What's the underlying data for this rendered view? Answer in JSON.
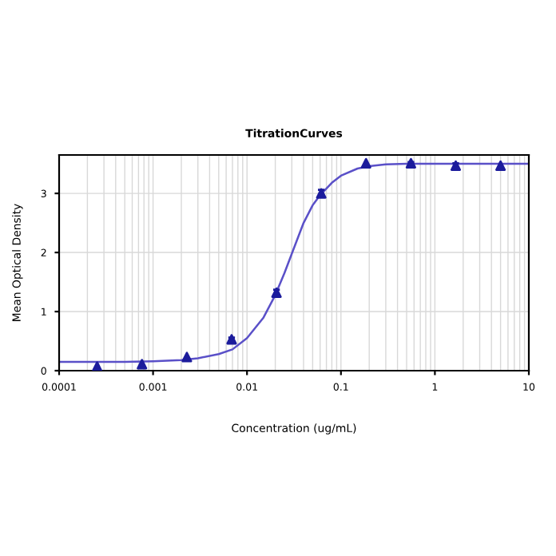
{
  "chart_data": {
    "type": "scatter",
    "title": "TitrationCurves",
    "xlabel": "Concentration (ug/mL)",
    "ylabel": "Mean Optical Density",
    "log": "x",
    "grid": true,
    "xlim": [
      0.0001,
      10
    ],
    "ylim": [
      0,
      3.65
    ],
    "xticks": [
      {
        "value": 0.0001,
        "label": "0.0001"
      },
      {
        "value": 0.001,
        "label": "0.001"
      },
      {
        "value": 0.01,
        "label": "0.01"
      },
      {
        "value": 0.1,
        "label": "0.1"
      },
      1,
      10
    ],
    "yticks": [
      0,
      1,
      2,
      3
    ],
    "series": [
      {
        "color": "#1c1c9c",
        "marker": "triangle",
        "x": [
          0.000254,
          0.000762,
          0.00229,
          0.00686,
          0.0206,
          0.0617,
          0.185,
          0.556,
          1.667,
          5
        ],
        "values": [
          0.07,
          0.11,
          0.23,
          0.53,
          1.32,
          3.0,
          3.51,
          3.51,
          3.47,
          3.47
        ],
        "errors": [
          null,
          null,
          null,
          0.03,
          0.05,
          0.06,
          null,
          0.02,
          0.04,
          null
        ]
      },
      {
        "type": "line",
        "color": "#5a50c8",
        "marker": "none",
        "line_style": "solid",
        "x": [
          0.0001,
          0.0005,
          0.001,
          0.002,
          0.003,
          0.005,
          0.007,
          0.01,
          0.015,
          0.02,
          0.025,
          0.03,
          0.04,
          0.05,
          0.06,
          0.08,
          0.1,
          0.15,
          0.2,
          0.3,
          0.5,
          1,
          3,
          10
        ],
        "values": [
          0.15,
          0.15,
          0.16,
          0.18,
          0.21,
          0.28,
          0.36,
          0.55,
          0.9,
          1.28,
          1.65,
          1.98,
          2.5,
          2.8,
          2.97,
          3.18,
          3.3,
          3.42,
          3.46,
          3.49,
          3.5,
          3.5,
          3.5,
          3.5
        ]
      }
    ]
  }
}
